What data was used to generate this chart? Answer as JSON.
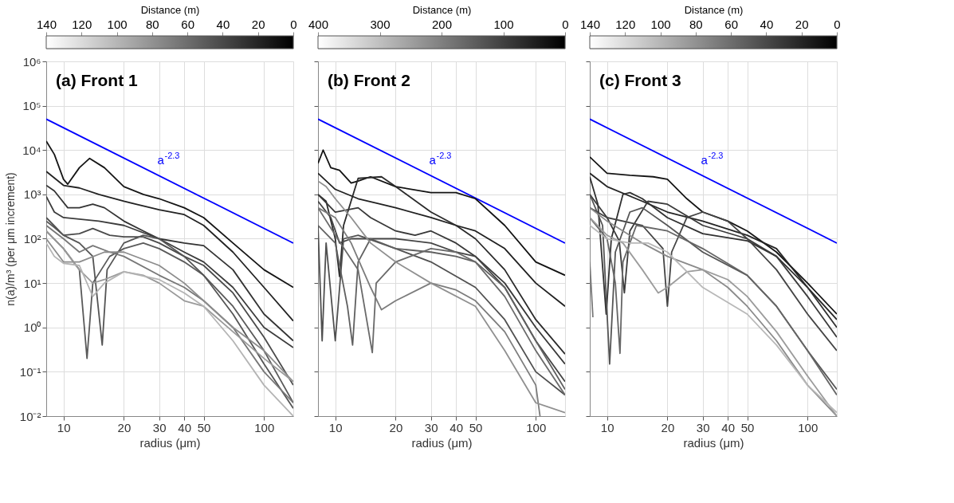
{
  "chart_data": [
    {
      "type": "line",
      "title": "(a) Front 1",
      "xlabel": "radius (μm)",
      "ylabel": "n(a)/m³ (per μm increment)",
      "log": "xy",
      "grid": true,
      "xlim": [
        8.2,
        140
      ],
      "ylim": [
        0.01,
        1000000
      ],
      "xticks": [
        10,
        20,
        30,
        40,
        50,
        100
      ],
      "yticks": [
        {
          "value": 0.01,
          "label": "10⁻²"
        },
        {
          "value": 0.1,
          "label": "10⁻¹"
        },
        {
          "value": 1,
          "label": "10⁰"
        },
        {
          "value": 10,
          "label": "10¹"
        },
        {
          "value": 100,
          "label": "10²"
        },
        {
          "value": 1000,
          "label": "10³"
        },
        {
          "value": 10000,
          "label": "10⁴"
        },
        {
          "value": 100000,
          "label": "10⁵"
        },
        {
          "value": 1000000,
          "label": "10⁶"
        }
      ],
      "clabel": "Distance (m)",
      "clim": [
        140,
        0
      ],
      "cticks": [
        140,
        120,
        100,
        80,
        60,
        40,
        20,
        0
      ],
      "annotations": [
        "a$^{-2.3}$"
      ],
      "series": [
        {
          "type": "line",
          "color": "#0000ff",
          "x": [
            8.2,
            140
          ],
          "values": [
            50000,
            80
          ]
        },
        {
          "color": "#151515",
          "x": [
            8.2,
            9,
            10,
            10.5,
            12,
            13.5,
            16,
            20,
            25,
            30,
            40,
            50,
            70,
            100,
            140
          ],
          "values": [
            16000,
            8000,
            2200,
            1700,
            4000,
            6500,
            4000,
            1500,
            1000,
            800,
            500,
            300,
            80,
            20,
            8
          ]
        },
        {
          "color": "#222222",
          "x": [
            8.2,
            10,
            12,
            15,
            20,
            30,
            40,
            50,
            70,
            100,
            140
          ],
          "values": [
            3300,
            1600,
            1400,
            1000,
            700,
            450,
            350,
            200,
            50,
            8,
            1.4
          ]
        },
        {
          "color": "#333333",
          "x": [
            8.2,
            9,
            10.5,
            12,
            14,
            16,
            20,
            25,
            30,
            40,
            50,
            70,
            100,
            140
          ],
          "values": [
            1600,
            1200,
            500,
            500,
            600,
            500,
            250,
            150,
            100,
            80,
            70,
            20,
            2,
            0.5
          ]
        },
        {
          "color": "#3c3c3c",
          "x": [
            8.2,
            9,
            10,
            15,
            20,
            30,
            40,
            50,
            70,
            100,
            140
          ],
          "values": [
            900,
            400,
            300,
            250,
            200,
            100,
            50,
            30,
            8,
            1,
            0.35
          ]
        },
        {
          "color": "#4a4a4a",
          "x": [
            8.2,
            10,
            12,
            14,
            17,
            20,
            25,
            30,
            40,
            50,
            70,
            100,
            140
          ],
          "values": [
            300,
            120,
            130,
            170,
            120,
            110,
            110,
            80,
            40,
            25,
            6,
            0.6,
            0.05
          ]
        },
        {
          "color": "#5a5a5a",
          "x": [
            8.2,
            10,
            12,
            13.1,
            14,
            17,
            20,
            25,
            30,
            40,
            50,
            70,
            100,
            140
          ],
          "values": [
            150,
            60,
            20,
            0.2,
            10,
            40,
            60,
            80,
            60,
            30,
            15,
            3,
            0.3,
            0.02
          ]
        },
        {
          "color": "#555555",
          "x": [
            8.2,
            9,
            10,
            12,
            14,
            15.6,
            16.5,
            20,
            25,
            30,
            40,
            50,
            70,
            100,
            140
          ],
          "values": [
            250,
            180,
            120,
            80,
            40,
            0.4,
            20,
            80,
            120,
            100,
            40,
            15,
            2,
            0.15,
            0.015
          ]
        },
        {
          "color": "#777777",
          "x": [
            8.2,
            10,
            12,
            14,
            17,
            20,
            30,
            40,
            50,
            70,
            100,
            140
          ],
          "values": [
            200,
            100,
            50,
            70,
            50,
            40,
            15,
            8,
            4,
            1,
            0.1,
            0.02
          ]
        },
        {
          "color": "#8c8c8c",
          "x": [
            8.2,
            10,
            12,
            16,
            20,
            30,
            40,
            50,
            70,
            100,
            140
          ],
          "values": [
            100,
            30,
            30,
            50,
            50,
            25,
            10,
            4,
            1,
            0.3,
            0.06
          ]
        },
        {
          "color": "#9a9a9a",
          "x": [
            8.2,
            10,
            12,
            14,
            16,
            20,
            25,
            30,
            40,
            50,
            70,
            100,
            140
          ],
          "values": [
            150,
            60,
            20,
            10,
            12,
            18,
            15,
            10,
            4,
            3,
            0.8,
            0.2,
            0.06
          ]
        },
        {
          "color": "#b4b4b4",
          "x": [
            8.2,
            9,
            10,
            12,
            14,
            16,
            20,
            30,
            40,
            50,
            70,
            100,
            140
          ],
          "values": [
            80,
            40,
            28,
            25,
            5,
            10,
            18,
            12,
            6,
            3,
            0.5,
            0.05,
            0.01
          ]
        }
      ]
    },
    {
      "type": "line",
      "title": "(b) Front 2",
      "xlabel": "radius (μm)",
      "log": "xy",
      "grid": true,
      "tick_labels": "x",
      "xlim": [
        8.2,
        140
      ],
      "ylim": [
        0.01,
        1000000
      ],
      "xticks": [
        10,
        20,
        30,
        40,
        50,
        100
      ],
      "yticks": [
        {
          "value": 0.01,
          "label": null
        },
        {
          "value": 0.1,
          "label": null
        },
        {
          "value": 1,
          "label": null
        },
        {
          "value": 10,
          "label": null
        },
        {
          "value": 100,
          "label": null
        },
        {
          "value": 1000,
          "label": null
        },
        {
          "value": 10000,
          "label": null
        },
        {
          "value": 100000,
          "label": null
        },
        {
          "value": 1000000,
          "label": null
        }
      ],
      "clabel": "Distance (m)",
      "clim": [
        400,
        0
      ],
      "cticks": [
        400,
        300,
        200,
        100,
        0
      ],
      "annotations": [
        "a$^{-2.3}$"
      ],
      "series": [
        {
          "type": "line",
          "color": "#0000ff",
          "x": [
            8.2,
            140
          ],
          "values": [
            50000,
            80
          ]
        },
        {
          "color": "#121212",
          "x": [
            8.2,
            8.7,
            9.5,
            10.5,
            12,
            13,
            15,
            20,
            30,
            40,
            50,
            70,
            100,
            140
          ],
          "values": [
            5000,
            10000,
            4000,
            3500,
            1800,
            2000,
            2500,
            1500,
            1100,
            1100,
            800,
            200,
            30,
            15
          ]
        },
        {
          "color": "#202020",
          "x": [
            8.2,
            10,
            13,
            20,
            30,
            40,
            50,
            70,
            100,
            140
          ],
          "values": [
            3000,
            1300,
            800,
            500,
            300,
            200,
            150,
            60,
            10,
            3
          ]
        },
        {
          "color": "#2a2a2a",
          "x": [
            8.2,
            9,
            10,
            10.5,
            11,
            13,
            17,
            20,
            30,
            40,
            50,
            70,
            100,
            140
          ],
          "values": [
            1000,
            700,
            100,
            14,
            200,
            2300,
            2500,
            1500,
            400,
            200,
            100,
            20,
            1.5,
            0.25
          ]
        },
        {
          "color": "#383838",
          "x": [
            8.2,
            10,
            13,
            15,
            20,
            25,
            30,
            40,
            50,
            70,
            100,
            140
          ],
          "values": [
            1000,
            400,
            500,
            300,
            150,
            120,
            150,
            80,
            40,
            10,
            1,
            0.15
          ]
        },
        {
          "color": "#444444",
          "x": [
            8.2,
            9.5,
            10.5,
            12,
            15,
            20,
            30,
            40,
            50,
            70,
            100,
            140
          ],
          "values": [
            700,
            300,
            80,
            100,
            100,
            100,
            80,
            50,
            40,
            8,
            0.5,
            0.06
          ]
        },
        {
          "color": "#505050",
          "x": [
            8.2,
            8.6,
            9,
            10,
            11,
            13,
            20,
            30,
            50,
            70,
            100,
            140
          ],
          "values": [
            200,
            0.5,
            80,
            0.5,
            100,
            120,
            60,
            30,
            8,
            1.5,
            0.1,
            0.03
          ]
        },
        {
          "color": "#606060",
          "x": [
            8.2,
            10,
            11.5,
            12.2,
            13,
            15,
            20,
            30,
            40,
            50,
            70,
            100,
            140
          ],
          "values": [
            200,
            80,
            3,
            0.4,
            30,
            100,
            60,
            50,
            40,
            30,
            8,
            0.5,
            0.04
          ]
        },
        {
          "color": "#6a6a6a",
          "x": [
            8.2,
            10,
            13,
            15.3,
            16,
            20,
            30,
            40,
            50,
            70,
            100,
            140
          ],
          "values": [
            500,
            120,
            20,
            0.27,
            10,
            30,
            60,
            50,
            30,
            5,
            0.3,
            0.03
          ]
        },
        {
          "color": "#7c7c7c",
          "x": [
            8.2,
            10,
            12,
            15,
            17,
            20,
            30,
            40,
            50,
            70,
            100,
            105
          ],
          "values": [
            500,
            300,
            80,
            8,
            2.5,
            4,
            10,
            7,
            4,
            0.8,
            0.05,
            0.01
          ]
        },
        {
          "color": "#909090",
          "x": [
            8.2,
            9,
            10,
            12,
            15,
            20,
            30,
            50,
            70,
            100,
            140
          ],
          "values": [
            2000,
            1500,
            800,
            300,
            80,
            30,
            10,
            3,
            0.3,
            0.02,
            0.012
          ]
        }
      ]
    },
    {
      "type": "line",
      "title": "(c) Front 3",
      "xlabel": "radius (μm)",
      "log": "xy",
      "grid": true,
      "tick_labels": "x",
      "xlim": [
        8.2,
        140
      ],
      "ylim": [
        0.01,
        1000000
      ],
      "xticks": [
        10,
        20,
        30,
        40,
        50,
        100
      ],
      "yticks": [
        {
          "value": 0.01,
          "label": null
        },
        {
          "value": 0.1,
          "label": null
        },
        {
          "value": 1,
          "label": null
        },
        {
          "value": 10,
          "label": null
        },
        {
          "value": 100,
          "label": null
        },
        {
          "value": 1000,
          "label": null
        },
        {
          "value": 10000,
          "label": null
        },
        {
          "value": 100000,
          "label": null
        },
        {
          "value": 1000000,
          "label": null
        }
      ],
      "clabel": "Distance (m)",
      "clim": [
        140,
        0
      ],
      "cticks": [
        140,
        120,
        100,
        80,
        60,
        40,
        20,
        0
      ],
      "annotations": [
        "a$^{-2.3}$"
      ],
      "series": [
        {
          "type": "line",
          "color": "#0000ff",
          "x": [
            8.2,
            140
          ],
          "values": [
            50000,
            80
          ]
        },
        {
          "color": "#151515",
          "x": [
            8.2,
            10,
            13,
            17,
            20,
            25,
            30,
            40,
            50,
            70,
            100,
            140
          ],
          "values": [
            7000,
            3000,
            2700,
            2500,
            2200,
            800,
            400,
            250,
            150,
            50,
            10,
            2
          ]
        },
        {
          "color": "#252525",
          "x": [
            8.2,
            10,
            15,
            20,
            30,
            50,
            70,
            100,
            140
          ],
          "values": [
            3000,
            1500,
            700,
            400,
            250,
            120,
            60,
            8,
            1.5
          ]
        },
        {
          "color": "#303030",
          "x": [
            8.2,
            9,
            9.9,
            10.5,
            12,
            13,
            15,
            20,
            30,
            50,
            70,
            100,
            140
          ],
          "values": [
            2500,
            600,
            2,
            100,
            1000,
            1100,
            800,
            300,
            130,
            90,
            40,
            8,
            1
          ]
        },
        {
          "color": "#3a3a3a",
          "x": [
            8.2,
            10,
            11.5,
            12.2,
            13,
            16,
            20,
            30,
            50,
            70,
            100,
            140
          ],
          "values": [
            1000,
            300,
            90,
            6,
            150,
            700,
            600,
            200,
            100,
            40,
            5,
            0.6
          ]
        },
        {
          "color": "#444444",
          "x": [
            8.2,
            10,
            15,
            19,
            20,
            21,
            25,
            30,
            40,
            50,
            70,
            100,
            140
          ],
          "values": [
            500,
            300,
            200,
            60,
            3,
            50,
            300,
            400,
            250,
            100,
            20,
            2,
            0.3
          ]
        },
        {
          "color": "#555555",
          "x": [
            8.2,
            9.5,
            10.3,
            11,
            13,
            15,
            20,
            30,
            50,
            70,
            100,
            140
          ],
          "values": [
            1000,
            200,
            0.15,
            50,
            400,
            500,
            200,
            50,
            15,
            3,
            0.3,
            0.04
          ]
        },
        {
          "color": "#666666",
          "x": [
            8.2,
            10,
            11,
            11.6,
            12,
            14,
            20,
            30,
            50,
            70,
            100,
            140
          ],
          "values": [
            300,
            100,
            10,
            0.26,
            30,
            200,
            150,
            60,
            15,
            3,
            0.3,
            0.03
          ]
        },
        {
          "color": "#7a7a7a",
          "x": [
            8.2,
            8.5
          ],
          "values": [
            30,
            1.7
          ]
        },
        {
          "color": "#8a8a8a",
          "x": [
            8.2,
            10,
            12,
            15,
            20,
            30,
            40,
            50,
            70,
            100,
            140
          ],
          "values": [
            500,
            250,
            150,
            80,
            40,
            20,
            8,
            3,
            0.5,
            0.05,
            0.01
          ]
        },
        {
          "color": "#9c9c9c",
          "x": [
            8.2,
            10,
            12,
            15,
            18,
            20,
            25,
            30,
            40,
            50,
            70,
            100,
            140
          ],
          "values": [
            300,
            120,
            80,
            20,
            6,
            8,
            18,
            20,
            12,
            5,
            0.8,
            0.08,
            0.01
          ]
        },
        {
          "color": "#b8b8b8",
          "x": [
            8.2,
            10,
            13,
            16,
            20,
            30,
            50,
            70,
            100,
            140
          ],
          "values": [
            200,
            100,
            80,
            80,
            50,
            8,
            2,
            0.4,
            0.05,
            0.012
          ]
        }
      ]
    }
  ]
}
